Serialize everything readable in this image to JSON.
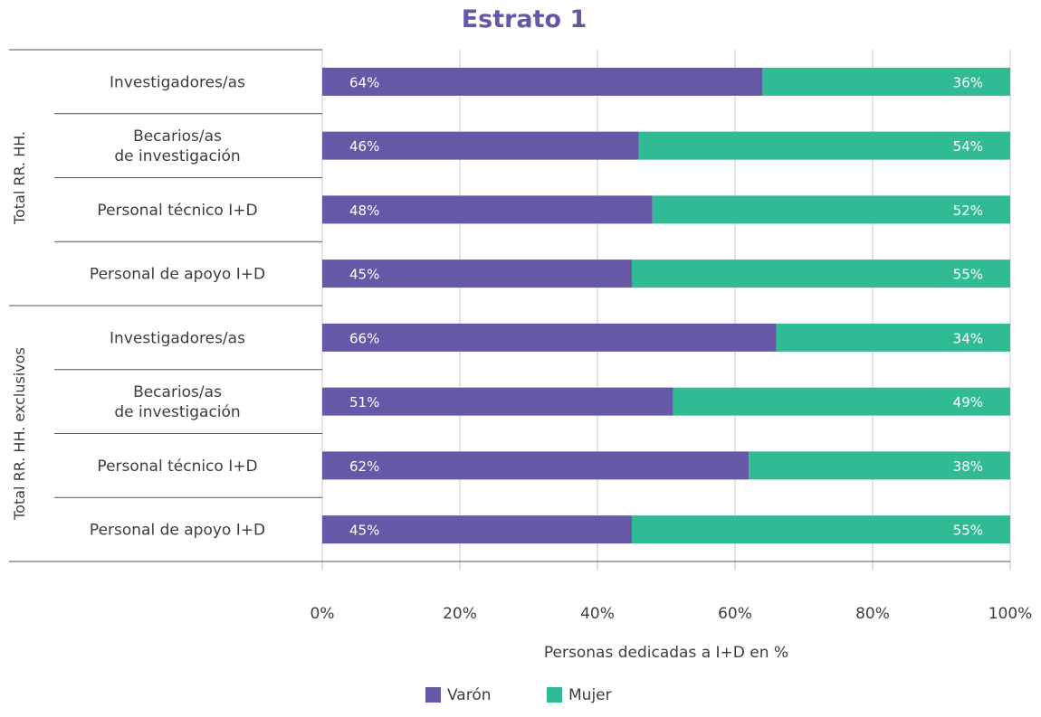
{
  "chart_data": {
    "type": "bar",
    "orientation": "horizontal",
    "stacked": true,
    "title": "Estrato 1",
    "xlabel": "Personas dedicadas a I+D en %",
    "xlim": [
      0,
      100
    ],
    "x_ticks": [
      "0%",
      "20%",
      "40%",
      "60%",
      "80%",
      "100%"
    ],
    "grid": true,
    "legend_position": "bottom",
    "groups": [
      {
        "label": "Total RR. HH.",
        "categories": [
          [
            "Investigadores/as"
          ],
          [
            "Becarios/as",
            "de investigación"
          ],
          [
            "Personal técnico I+D"
          ],
          [
            "Personal de apoyo I+D"
          ]
        ]
      },
      {
        "label": "Total RR. HH. exclusivos",
        "categories": [
          [
            "Investigadores/as"
          ],
          [
            "Becarios/as",
            "de investigación"
          ],
          [
            "Personal técnico I+D"
          ],
          [
            "Personal de apoyo I+D"
          ]
        ]
      }
    ],
    "series": [
      {
        "name": "Varón",
        "color": "#6558a6",
        "values": [
          64,
          46,
          48,
          45,
          66,
          51,
          62,
          45
        ],
        "labels": [
          "64%",
          "46%",
          "48%",
          "45%",
          "66%",
          "51%",
          "62%",
          "45%"
        ]
      },
      {
        "name": "Mujer",
        "color": "#31bb95",
        "values": [
          36,
          54,
          52,
          55,
          34,
          49,
          38,
          55
        ],
        "labels": [
          "36%",
          "54%",
          "52%",
          "55%",
          "34%",
          "49%",
          "38%",
          "55%"
        ]
      }
    ],
    "title_color": "#6558a6"
  }
}
